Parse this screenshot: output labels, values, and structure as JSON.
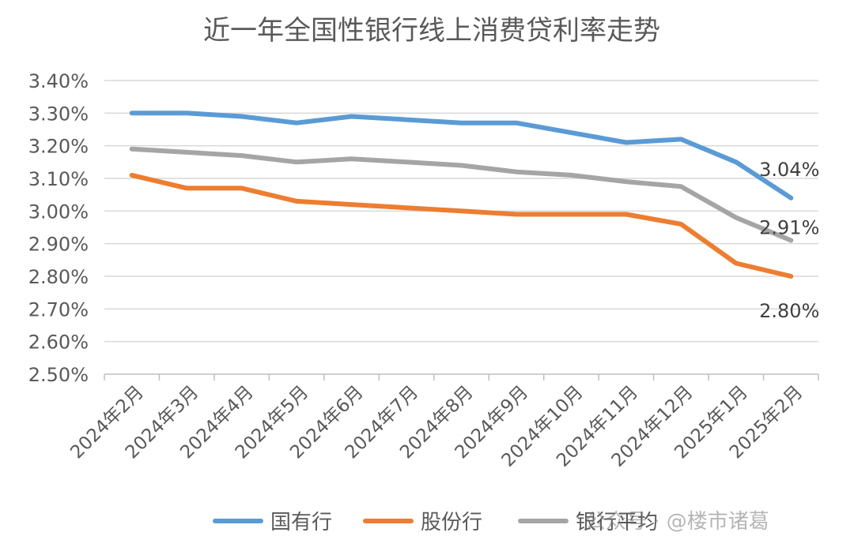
{
  "chart_data": {
    "type": "line",
    "title": "近一年全国性银行线上消费贷利率走势",
    "categories": [
      "2024年2月",
      "2024年3月",
      "2024年4月",
      "2024年5月",
      "2024年6月",
      "2024年7月",
      "2024年8月",
      "2024年9月",
      "2024年10月",
      "2024年11月",
      "2024年12月",
      "2025年1月",
      "2025年2月"
    ],
    "ylim": [
      2.5,
      3.4
    ],
    "yticks": [
      "3.40%",
      "3.30%",
      "3.20%",
      "3.10%",
      "3.00%",
      "2.90%",
      "2.80%",
      "2.70%",
      "2.60%",
      "2.50%"
    ],
    "grid": true,
    "legend_position": "bottom",
    "series": [
      {
        "name": "国有行",
        "color": "#5b9bd5",
        "values": [
          3.3,
          3.3,
          3.29,
          3.27,
          3.29,
          3.28,
          3.27,
          3.27,
          3.24,
          3.21,
          3.22,
          3.15,
          3.04
        ],
        "end_label": "3.04%"
      },
      {
        "name": "股份行",
        "color": "#ed7d31",
        "values": [
          3.11,
          3.07,
          3.07,
          3.03,
          3.02,
          3.01,
          3.0,
          2.99,
          2.99,
          2.99,
          2.96,
          2.84,
          2.8
        ],
        "end_label": "2.80%"
      },
      {
        "name": "银行平均",
        "color": "#a5a5a5",
        "values": [
          3.19,
          3.18,
          3.17,
          3.15,
          3.16,
          3.15,
          3.14,
          3.12,
          3.11,
          3.09,
          3.075,
          2.98,
          2.91
        ],
        "end_label": "2.91%"
      }
    ]
  },
  "watermark": "公众号 · @楼市诸葛"
}
